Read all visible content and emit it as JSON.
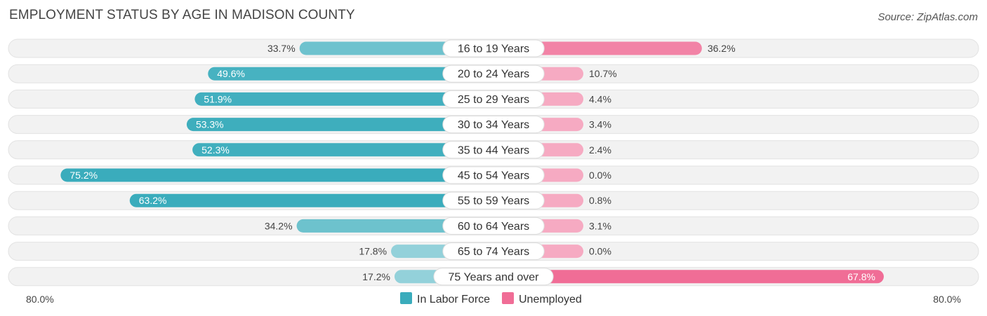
{
  "title": "EMPLOYMENT STATUS BY AGE IN MADISON COUNTY",
  "source": "Source: ZipAtlas.com",
  "chart_data": {
    "type": "bar",
    "orientation": "horizontal-diverging",
    "categories": [
      "16 to 19 Years",
      "20 to 24 Years",
      "25 to 29 Years",
      "30 to 34 Years",
      "35 to 44 Years",
      "45 to 54 Years",
      "55 to 59 Years",
      "60 to 64 Years",
      "65 to 74 Years",
      "75 Years and over"
    ],
    "series": [
      {
        "name": "In Labor Force",
        "side": "left",
        "color": "#3aacbc",
        "values": [
          33.7,
          49.6,
          51.9,
          53.3,
          52.3,
          75.2,
          63.2,
          34.2,
          17.8,
          17.2
        ],
        "labels": [
          "33.7%",
          "49.6%",
          "51.9%",
          "53.3%",
          "52.3%",
          "75.2%",
          "63.2%",
          "34.2%",
          "17.8%",
          "17.2%"
        ]
      },
      {
        "name": "Unemployed",
        "side": "right",
        "color": "#f06d96",
        "values": [
          36.2,
          10.7,
          4.4,
          3.4,
          2.4,
          0.0,
          0.8,
          3.1,
          0.0,
          67.8
        ],
        "labels": [
          "36.2%",
          "10.7%",
          "4.4%",
          "3.4%",
          "2.4%",
          "0.0%",
          "0.8%",
          "3.1%",
          "0.0%",
          "67.8%"
        ]
      }
    ],
    "axis_min_label": "80.0%",
    "axis_max_label": "80.0%",
    "xlim": [
      -80,
      80
    ],
    "legend": [
      "In Labor Force",
      "Unemployed"
    ],
    "legend_position": "bottom-center"
  }
}
